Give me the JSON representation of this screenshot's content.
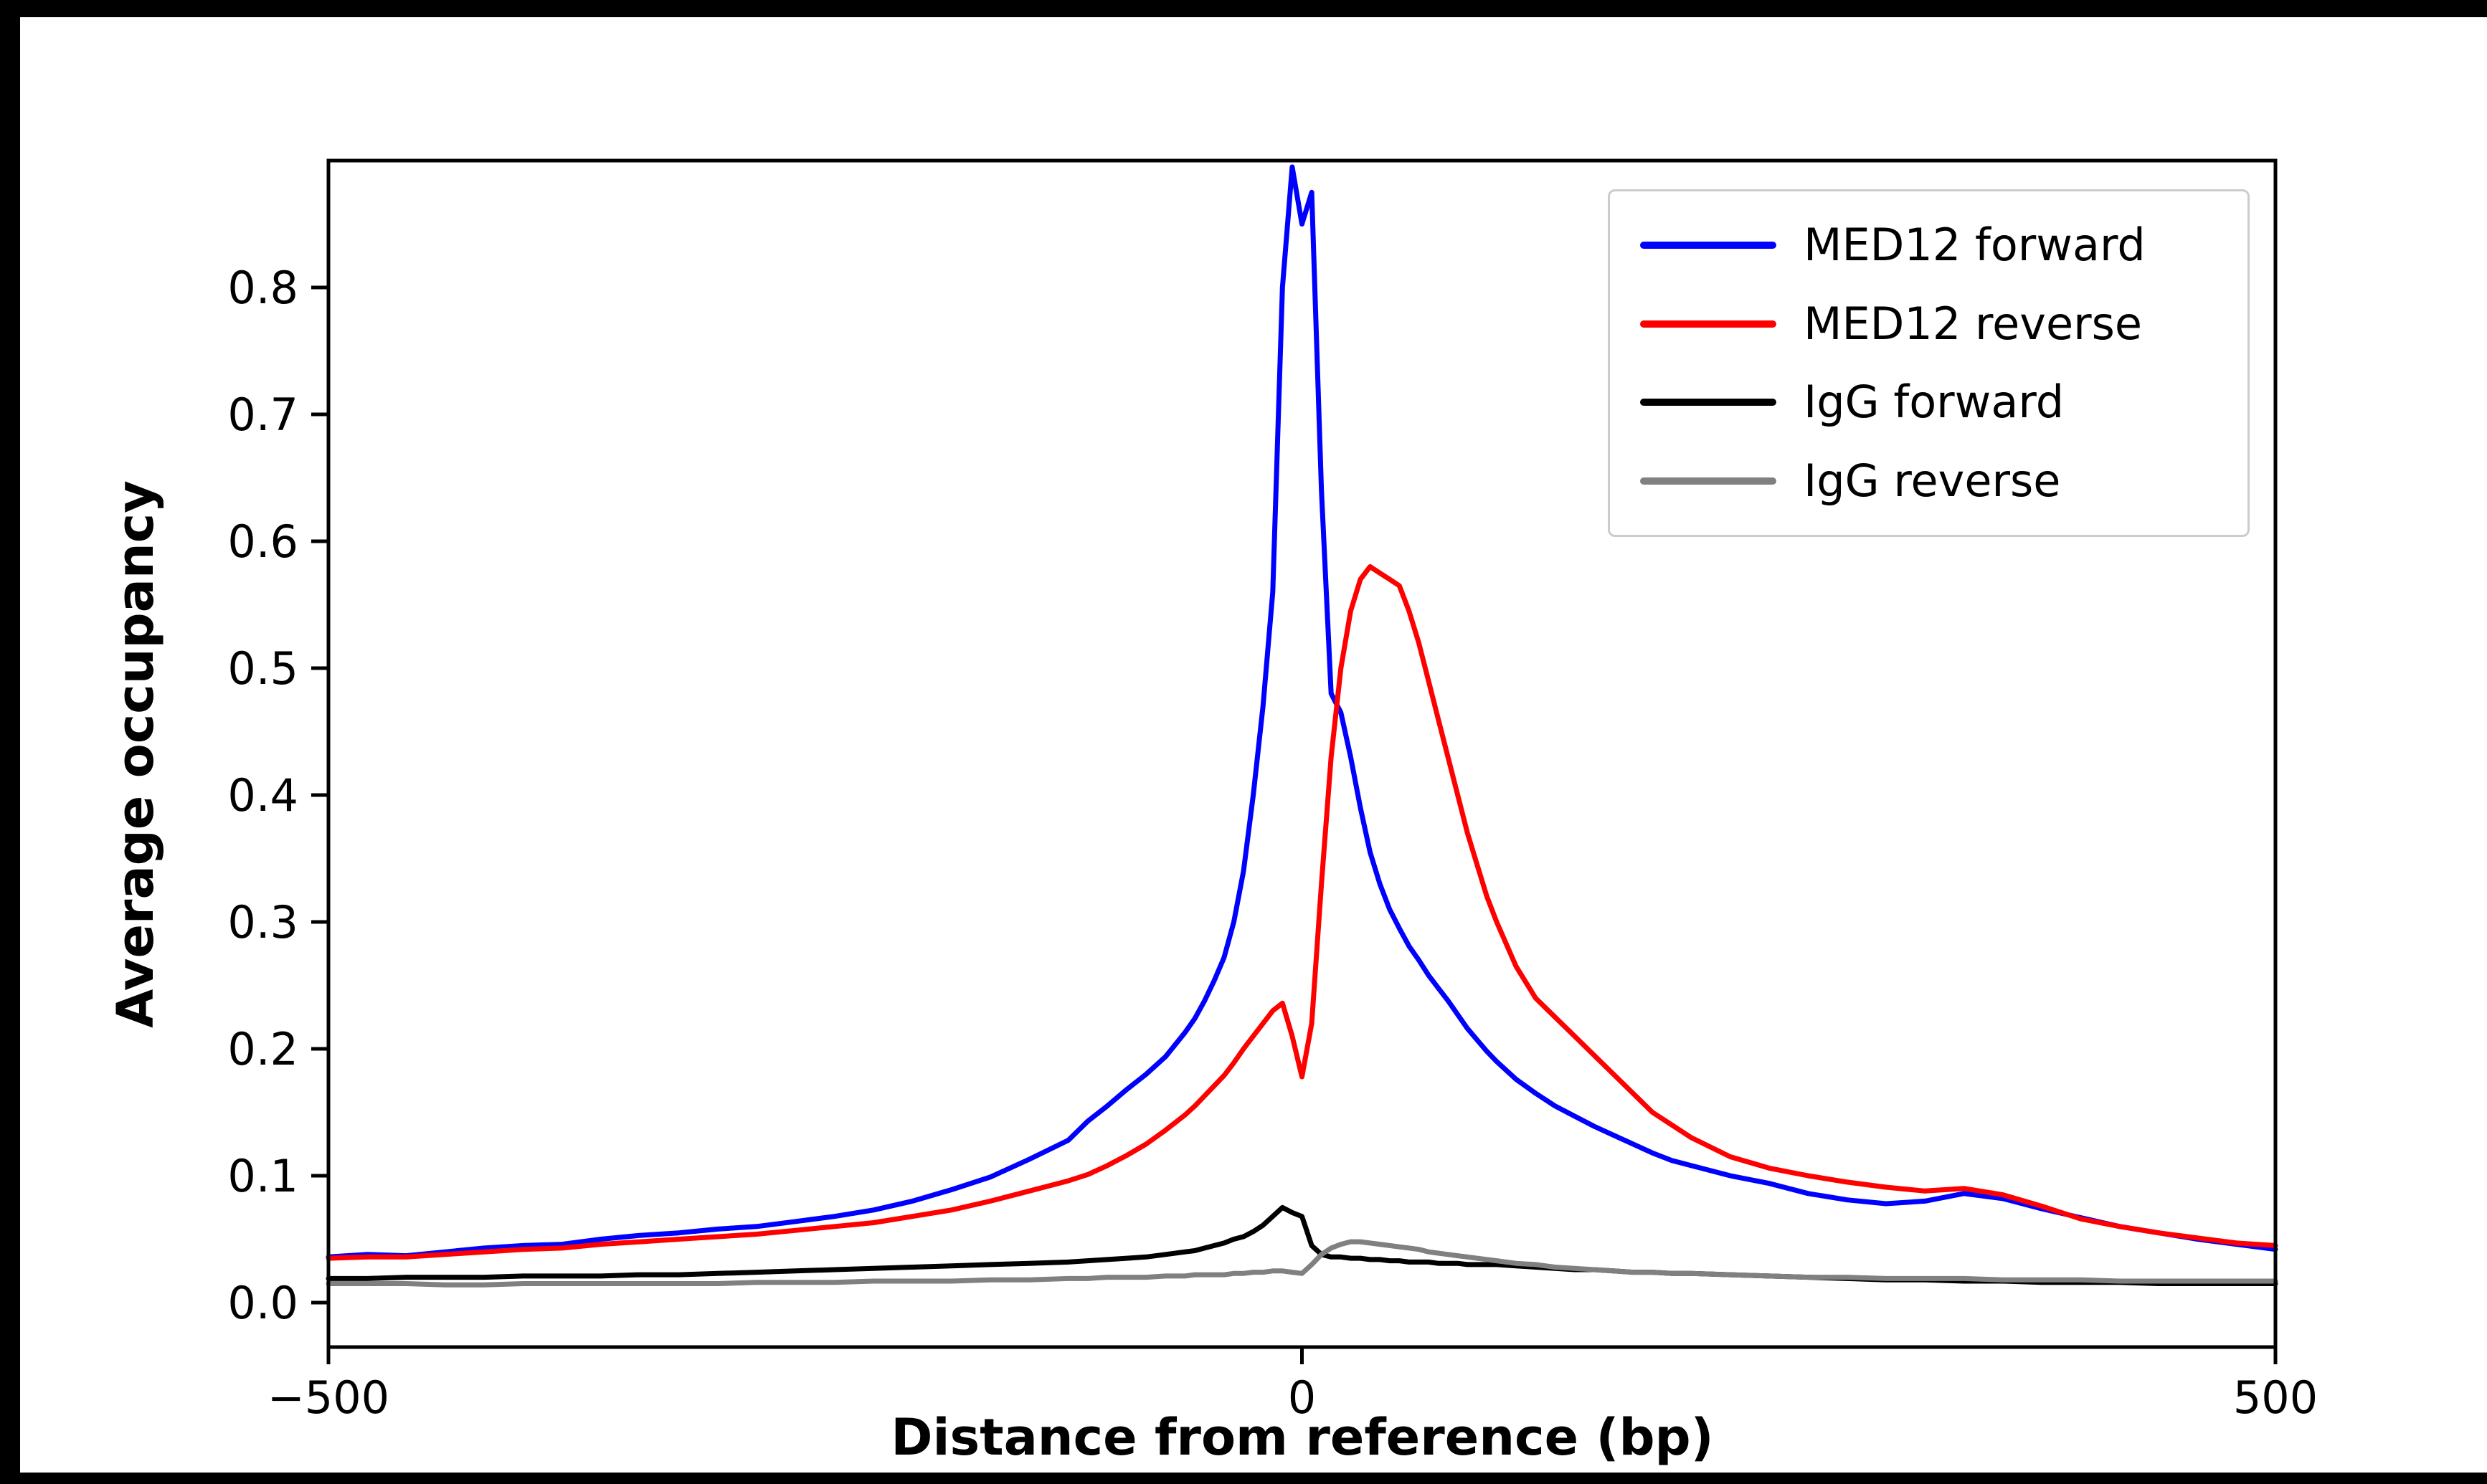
{
  "figure": {
    "background": "#ffffff",
    "outer_background": "#000000"
  },
  "legend": {
    "position": "upper right",
    "border_color": "#cccccc"
  },
  "chart_data": {
    "type": "line",
    "title": "",
    "xlabel": "Distance from reference (bp)",
    "ylabel": "Average occupancy",
    "xlim": [
      -500,
      500
    ],
    "ylim": [
      -0.035,
      0.9
    ],
    "grid": false,
    "legend_position": "upper right",
    "xticks": [
      {
        "v": -500,
        "label": "−500"
      },
      {
        "v": 0,
        "label": "0"
      },
      {
        "v": 500,
        "label": "500"
      }
    ],
    "yticks": [
      {
        "v": 0.0,
        "label": "0.0"
      },
      {
        "v": 0.1,
        "label": "0.1"
      },
      {
        "v": 0.2,
        "label": "0.2"
      },
      {
        "v": 0.3,
        "label": "0.3"
      },
      {
        "v": 0.4,
        "label": "0.4"
      },
      {
        "v": 0.5,
        "label": "0.5"
      },
      {
        "v": 0.6,
        "label": "0.6"
      },
      {
        "v": 0.7,
        "label": "0.7"
      },
      {
        "v": 0.8,
        "label": "0.8"
      }
    ],
    "x": [
      -500,
      -480,
      -460,
      -440,
      -420,
      -400,
      -380,
      -360,
      -340,
      -320,
      -300,
      -280,
      -260,
      -240,
      -220,
      -200,
      -180,
      -160,
      -140,
      -120,
      -110,
      -100,
      -90,
      -80,
      -70,
      -60,
      -55,
      -50,
      -45,
      -40,
      -35,
      -30,
      -25,
      -20,
      -15,
      -10,
      -5,
      0,
      5,
      10,
      15,
      20,
      25,
      30,
      35,
      40,
      45,
      50,
      55,
      60,
      65,
      70,
      75,
      80,
      85,
      90,
      95,
      100,
      110,
      120,
      130,
      140,
      150,
      160,
      170,
      180,
      190,
      200,
      220,
      240,
      260,
      280,
      300,
      320,
      340,
      360,
      380,
      400,
      420,
      440,
      460,
      480,
      500
    ],
    "series": [
      {
        "name": "MED12 forward",
        "color": "#0000ff",
        "values": [
          0.036,
          0.038,
          0.037,
          0.04,
          0.043,
          0.045,
          0.046,
          0.05,
          0.053,
          0.055,
          0.058,
          0.06,
          0.064,
          0.068,
          0.073,
          0.08,
          0.089,
          0.099,
          0.113,
          0.128,
          0.143,
          0.155,
          0.168,
          0.18,
          0.194,
          0.213,
          0.224,
          0.238,
          0.254,
          0.272,
          0.3,
          0.34,
          0.4,
          0.47,
          0.56,
          0.8,
          0.895,
          0.85,
          0.875,
          0.64,
          0.48,
          0.465,
          0.43,
          0.39,
          0.355,
          0.33,
          0.31,
          0.295,
          0.281,
          0.27,
          0.258,
          0.248,
          0.238,
          0.227,
          0.216,
          0.207,
          0.198,
          0.19,
          0.176,
          0.165,
          0.155,
          0.147,
          0.139,
          0.132,
          0.125,
          0.118,
          0.112,
          0.108,
          0.1,
          0.094,
          0.086,
          0.081,
          0.078,
          0.08,
          0.086,
          0.082,
          0.074,
          0.067,
          0.06,
          0.055,
          0.05,
          0.046,
          0.042
        ]
      },
      {
        "name": "MED12 reverse",
        "color": "#ff0000",
        "values": [
          0.035,
          0.036,
          0.036,
          0.038,
          0.04,
          0.042,
          0.043,
          0.046,
          0.048,
          0.05,
          0.052,
          0.054,
          0.057,
          0.06,
          0.063,
          0.068,
          0.073,
          0.08,
          0.088,
          0.096,
          0.101,
          0.108,
          0.116,
          0.125,
          0.136,
          0.148,
          0.155,
          0.163,
          0.171,
          0.179,
          0.189,
          0.2,
          0.21,
          0.22,
          0.23,
          0.236,
          0.21,
          0.178,
          0.22,
          0.33,
          0.43,
          0.5,
          0.545,
          0.57,
          0.58,
          0.575,
          0.57,
          0.565,
          0.545,
          0.52,
          0.49,
          0.46,
          0.43,
          0.4,
          0.37,
          0.345,
          0.32,
          0.3,
          0.265,
          0.24,
          0.225,
          0.21,
          0.195,
          0.18,
          0.165,
          0.15,
          0.14,
          0.13,
          0.115,
          0.106,
          0.1,
          0.095,
          0.091,
          0.088,
          0.09,
          0.085,
          0.076,
          0.066,
          0.06,
          0.055,
          0.051,
          0.047,
          0.045
        ]
      },
      {
        "name": "IgG forward",
        "color": "#000000",
        "values": [
          0.019,
          0.019,
          0.02,
          0.02,
          0.02,
          0.021,
          0.021,
          0.021,
          0.022,
          0.022,
          0.023,
          0.024,
          0.025,
          0.026,
          0.027,
          0.028,
          0.029,
          0.03,
          0.031,
          0.032,
          0.033,
          0.034,
          0.035,
          0.036,
          0.038,
          0.04,
          0.041,
          0.043,
          0.045,
          0.047,
          0.05,
          0.052,
          0.056,
          0.061,
          0.068,
          0.075,
          0.071,
          0.068,
          0.045,
          0.038,
          0.036,
          0.036,
          0.035,
          0.035,
          0.034,
          0.034,
          0.033,
          0.033,
          0.032,
          0.032,
          0.032,
          0.031,
          0.031,
          0.031,
          0.03,
          0.03,
          0.03,
          0.03,
          0.029,
          0.028,
          0.027,
          0.026,
          0.026,
          0.025,
          0.024,
          0.024,
          0.023,
          0.023,
          0.022,
          0.021,
          0.02,
          0.019,
          0.018,
          0.018,
          0.017,
          0.017,
          0.016,
          0.016,
          0.016,
          0.015,
          0.015,
          0.015,
          0.015
        ]
      },
      {
        "name": "IgG reverse",
        "color": "#808080",
        "values": [
          0.015,
          0.015,
          0.015,
          0.014,
          0.014,
          0.015,
          0.015,
          0.015,
          0.015,
          0.015,
          0.015,
          0.016,
          0.016,
          0.016,
          0.017,
          0.017,
          0.017,
          0.018,
          0.018,
          0.019,
          0.019,
          0.02,
          0.02,
          0.02,
          0.021,
          0.021,
          0.022,
          0.022,
          0.022,
          0.022,
          0.023,
          0.023,
          0.024,
          0.024,
          0.025,
          0.025,
          0.024,
          0.023,
          0.03,
          0.038,
          0.043,
          0.046,
          0.048,
          0.048,
          0.047,
          0.046,
          0.045,
          0.044,
          0.043,
          0.042,
          0.04,
          0.039,
          0.038,
          0.037,
          0.036,
          0.035,
          0.034,
          0.033,
          0.031,
          0.03,
          0.028,
          0.027,
          0.026,
          0.025,
          0.024,
          0.024,
          0.023,
          0.023,
          0.022,
          0.021,
          0.02,
          0.02,
          0.019,
          0.019,
          0.019,
          0.018,
          0.018,
          0.018,
          0.017,
          0.017,
          0.017,
          0.017,
          0.017
        ]
      }
    ]
  }
}
